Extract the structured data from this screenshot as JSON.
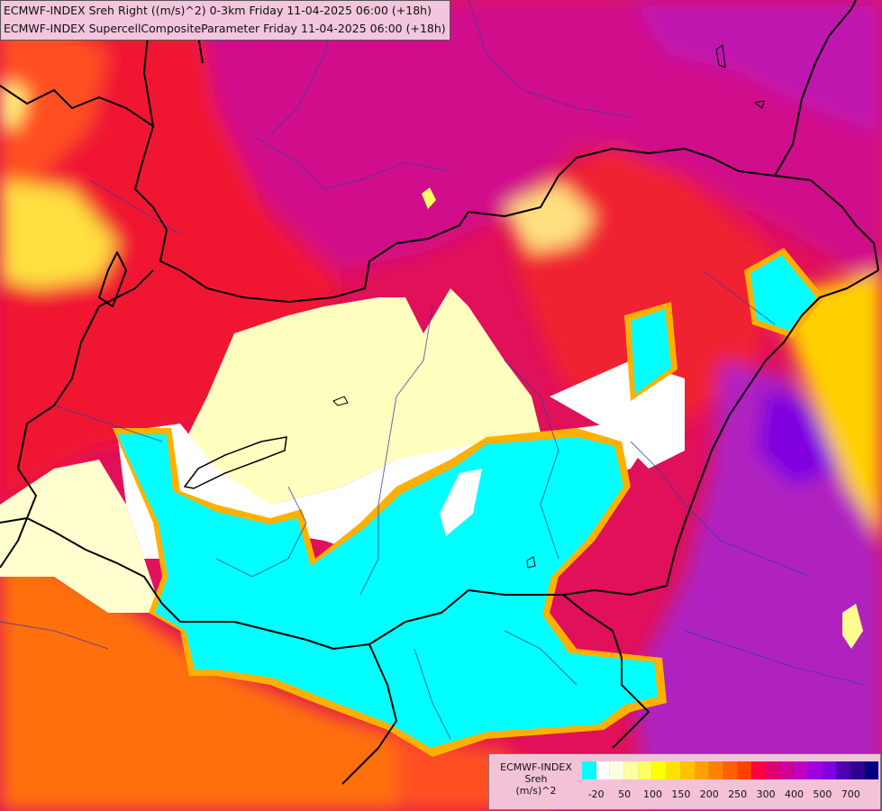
{
  "header": {
    "line1": "ECMWF-INDEX Sreh Right ((m/s)^2) 0-3km Friday 11-04-2025 06:00 (+18h)",
    "line2": "ECMWF-INDEX SupercellCompositeParameter Friday 11-04-2025 06:00 (+18h)"
  },
  "legend": {
    "title1": "ECMWF-INDEX",
    "title2": "Sreh",
    "title3": "(m/s)^2",
    "colors": [
      "#00ffff",
      "#ffffff",
      "#ffffe0",
      "#ffffa0",
      "#ffff60",
      "#ffff00",
      "#ffe000",
      "#ffc000",
      "#ffa000",
      "#ff8000",
      "#ff6000",
      "#ff4000",
      "#ff0040",
      "#e00070",
      "#d00098",
      "#c000c0",
      "#a000e0",
      "#8000e0",
      "#5000b0",
      "#300090",
      "#000080"
    ],
    "ticks": [
      {
        "label": "-20",
        "index": 1
      },
      {
        "label": "50",
        "index": 3
      },
      {
        "label": "100",
        "index": 5
      },
      {
        "label": "150",
        "index": 7
      },
      {
        "label": "200",
        "index": 9
      },
      {
        "label": "250",
        "index": 11
      },
      {
        "label": "300",
        "index": 13
      },
      {
        "label": "400",
        "index": 15
      },
      {
        "label": "500",
        "index": 17
      },
      {
        "label": "700",
        "index": 19
      }
    ]
  }
}
